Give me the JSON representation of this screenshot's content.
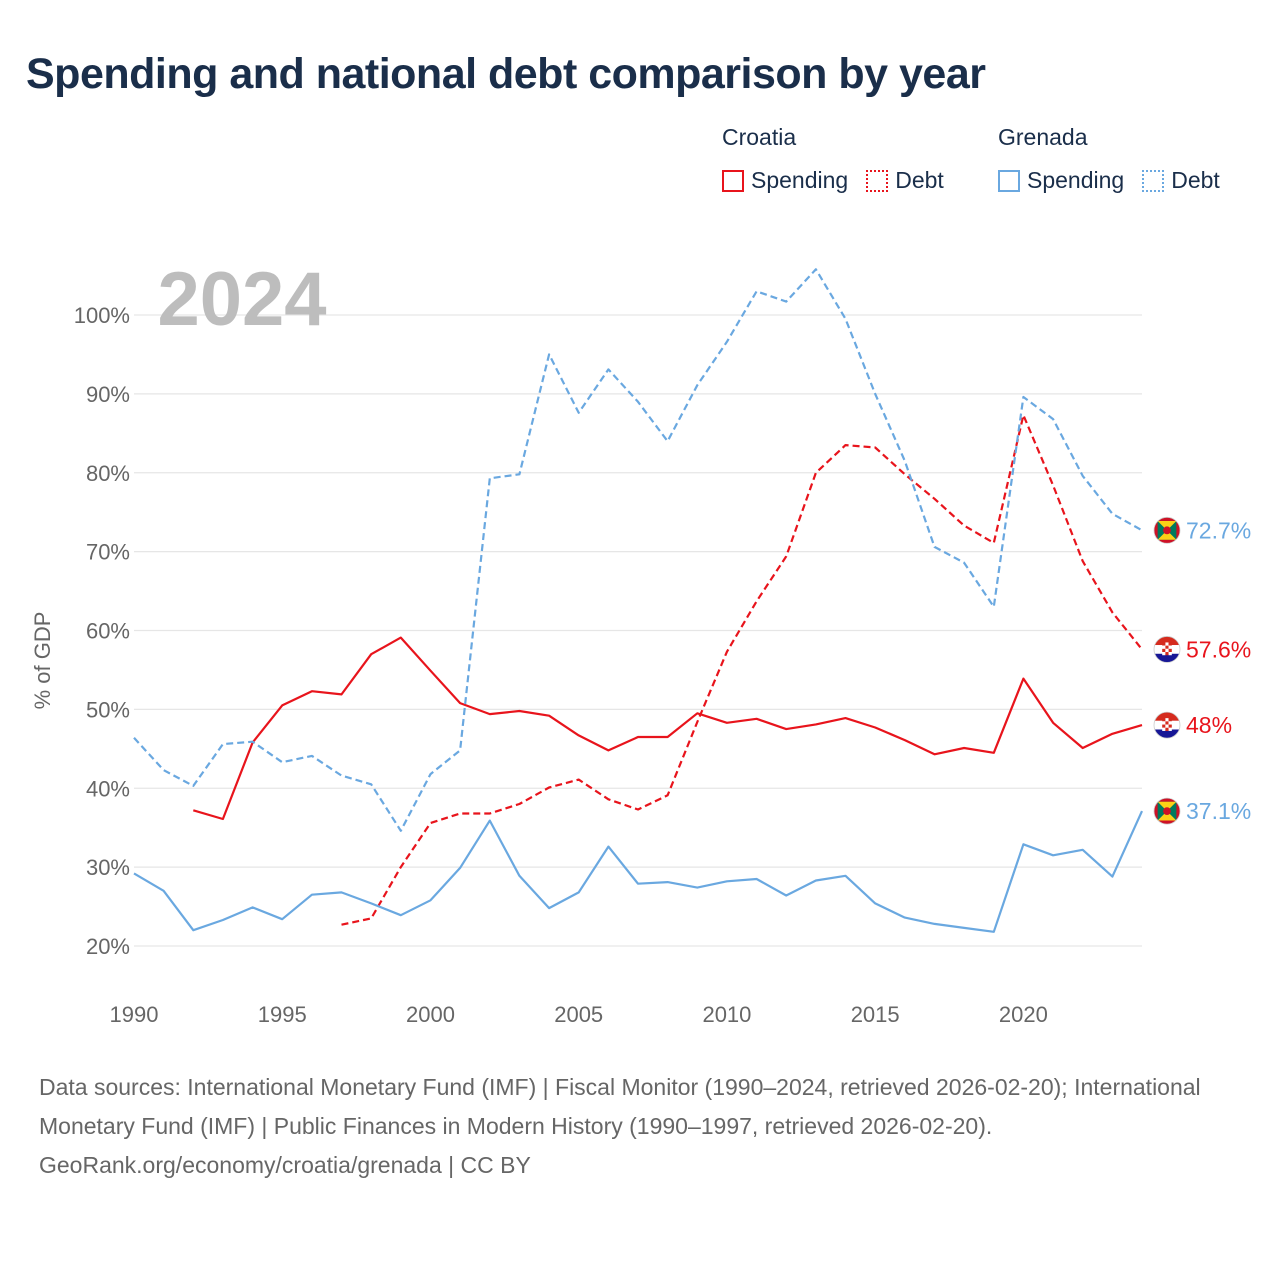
{
  "title": "Spending and national debt comparison by year",
  "legend": {
    "groups": [
      {
        "country": "Croatia",
        "color": "#e8141c",
        "items": [
          "Spending",
          "Debt"
        ]
      },
      {
        "country": "Grenada",
        "color": "#6aa8e0",
        "items": [
          "Spending",
          "Debt"
        ]
      }
    ]
  },
  "year_label": "2024",
  "footer": {
    "sources": "Data sources: International Monetary Fund (IMF) | Fiscal Monitor (1990–2024, retrieved 2026-02-20); International Monetary Fund (IMF) | Public Finances in Modern History (1990–1997, retrieved 2026-02-20).",
    "link": "GeoRank.org/economy/croatia/grenada | CC BY"
  },
  "chart_data": {
    "type": "line",
    "ylabel": "% of GDP",
    "xlabel": "",
    "xlim": [
      1990,
      2024
    ],
    "ylim": [
      20,
      100
    ],
    "yticks": [
      20,
      30,
      40,
      50,
      60,
      70,
      80,
      90,
      100
    ],
    "ytick_labels": [
      "20%",
      "30%",
      "40%",
      "50%",
      "60%",
      "70%",
      "80%",
      "90%",
      "100%"
    ],
    "xticks": [
      1990,
      1995,
      2000,
      2005,
      2010,
      2015,
      2020
    ],
    "xtick_labels": [
      "1990",
      "1995",
      "2000",
      "2005",
      "2010",
      "2015",
      "2020"
    ],
    "series": [
      {
        "name": "Croatia Spending",
        "country": "Croatia",
        "metric": "Spending",
        "color": "#e8141c",
        "dash": "solid",
        "end_label": "48%",
        "flag": "croatia",
        "x": [
          1992,
          1993,
          1994,
          1995,
          1996,
          1997,
          1998,
          1999,
          2000,
          2001,
          2002,
          2003,
          2004,
          2005,
          2006,
          2007,
          2008,
          2009,
          2010,
          2011,
          2012,
          2013,
          2014,
          2015,
          2016,
          2017,
          2018,
          2019,
          2020,
          2021,
          2022,
          2023,
          2024
        ],
        "values": [
          37.2,
          36.1,
          45.8,
          50.5,
          52.3,
          51.9,
          57.0,
          59.1,
          54.9,
          50.8,
          49.4,
          49.8,
          49.2,
          46.7,
          44.8,
          46.5,
          46.5,
          49.5,
          48.3,
          48.8,
          47.5,
          48.1,
          48.9,
          47.7,
          46.1,
          44.3,
          45.1,
          44.5,
          53.9,
          48.3,
          45.1,
          46.9,
          48.0
        ]
      },
      {
        "name": "Croatia Debt",
        "country": "Croatia",
        "metric": "Debt",
        "color": "#e8141c",
        "dash": "dashed",
        "end_label": "57.6%",
        "flag": "croatia",
        "x": [
          1997,
          1998,
          1999,
          2000,
          2001,
          2002,
          2003,
          2004,
          2005,
          2006,
          2007,
          2008,
          2009,
          2010,
          2011,
          2012,
          2013,
          2014,
          2015,
          2016,
          2017,
          2018,
          2019,
          2020,
          2021,
          2022,
          2023,
          2024
        ],
        "values": [
          22.7,
          23.5,
          30.0,
          35.6,
          36.8,
          36.8,
          38.0,
          40.1,
          41.1,
          38.6,
          37.3,
          39.1,
          48.4,
          57.3,
          63.7,
          69.4,
          80.0,
          83.5,
          83.2,
          79.8,
          76.7,
          73.3,
          71.1,
          87.3,
          78.4,
          68.8,
          62.3,
          57.6
        ]
      },
      {
        "name": "Grenada Spending",
        "country": "Grenada",
        "metric": "Spending",
        "color": "#6aa8e0",
        "dash": "solid",
        "end_label": "37.1%",
        "flag": "grenada",
        "x": [
          1990,
          1991,
          1992,
          1993,
          1994,
          1995,
          1996,
          1997,
          1998,
          1999,
          2000,
          2001,
          2002,
          2003,
          2004,
          2005,
          2006,
          2007,
          2008,
          2009,
          2010,
          2011,
          2012,
          2013,
          2014,
          2015,
          2016,
          2017,
          2018,
          2019,
          2020,
          2021,
          2022,
          2023,
          2024
        ],
        "values": [
          29.2,
          27.0,
          22.0,
          23.3,
          24.9,
          23.4,
          26.5,
          26.8,
          25.4,
          23.9,
          25.8,
          29.9,
          35.9,
          28.9,
          24.8,
          26.8,
          32.6,
          27.9,
          28.1,
          27.4,
          28.2,
          28.5,
          26.4,
          28.3,
          28.9,
          25.4,
          23.6,
          22.8,
          22.3,
          21.8,
          32.9,
          31.5,
          32.2,
          28.8,
          37.1
        ]
      },
      {
        "name": "Grenada Debt",
        "country": "Grenada",
        "metric": "Debt",
        "color": "#6aa8e0",
        "dash": "dashed",
        "end_label": "72.7%",
        "flag": "grenada",
        "x": [
          1990,
          1991,
          1992,
          1993,
          1994,
          1995,
          1996,
          1997,
          1998,
          1999,
          2000,
          2001,
          2002,
          2003,
          2004,
          2005,
          2006,
          2007,
          2008,
          2009,
          2010,
          2011,
          2012,
          2013,
          2014,
          2015,
          2016,
          2017,
          2018,
          2019,
          2020,
          2021,
          2022,
          2023,
          2024
        ],
        "values": [
          46.4,
          42.3,
          40.3,
          45.6,
          45.9,
          43.3,
          44.1,
          41.6,
          40.5,
          34.6,
          41.8,
          44.8,
          79.3,
          79.8,
          95.0,
          87.6,
          93.1,
          89.0,
          84.0,
          91.1,
          96.6,
          103.0,
          101.7,
          105.8,
          99.5,
          90.0,
          81.5,
          70.6,
          68.6,
          63.0,
          89.6,
          86.8,
          79.6,
          74.8,
          72.7
        ]
      }
    ]
  }
}
